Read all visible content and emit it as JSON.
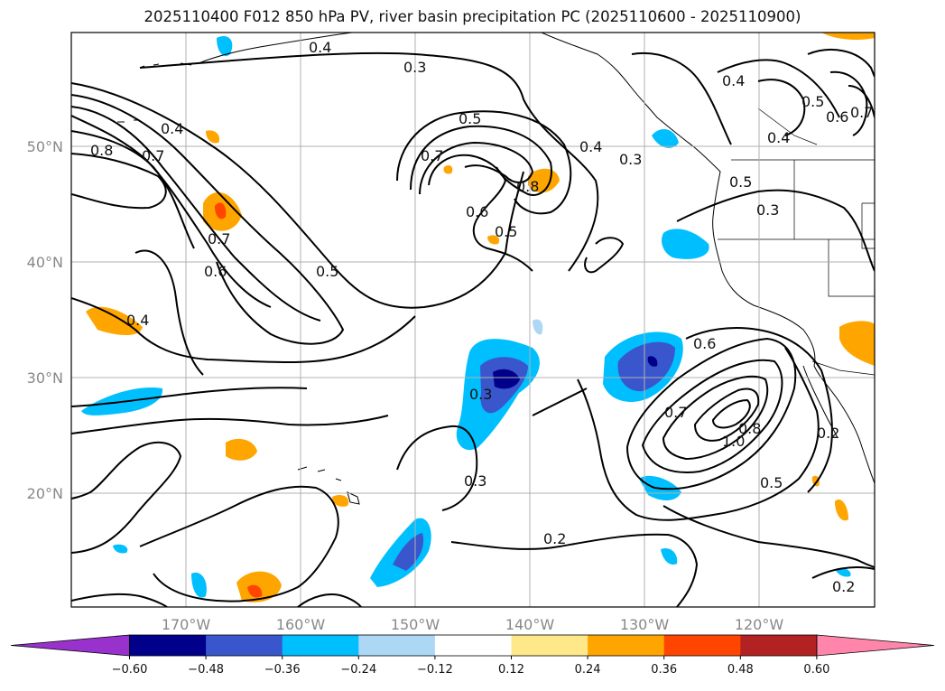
{
  "title": "2025110400 F012 850 hPa PV, river basin precipitation PC (2025110600 - 2025110900)",
  "map": {
    "lon_labels": [
      "170°W",
      "160°W",
      "150°W",
      "140°W",
      "130°W",
      "120°W"
    ],
    "lat_labels": [
      "50°N",
      "40°N",
      "30°N",
      "20°N"
    ],
    "contour_labels": [
      {
        "text": "0.3"
      },
      {
        "text": "0.4"
      },
      {
        "text": "0.8"
      },
      {
        "text": "0.7"
      },
      {
        "text": "0.4"
      },
      {
        "text": "0.5"
      },
      {
        "text": "0.7"
      },
      {
        "text": "0.6"
      },
      {
        "text": "0.8"
      },
      {
        "text": "0.5"
      },
      {
        "text": "0.4"
      },
      {
        "text": "0.3"
      },
      {
        "text": "0.4"
      },
      {
        "text": "0.5"
      },
      {
        "text": "0.6"
      },
      {
        "text": "0.7"
      },
      {
        "text": "0.4"
      },
      {
        "text": "0.5"
      },
      {
        "text": "0.3"
      },
      {
        "text": "0.7"
      },
      {
        "text": "0.6"
      },
      {
        "text": "0.5"
      },
      {
        "text": "0.4"
      },
      {
        "text": "0.3"
      },
      {
        "text": "0.3"
      },
      {
        "text": "0.6"
      },
      {
        "text": "0.7"
      },
      {
        "text": "1.0"
      },
      {
        "text": "0.8"
      },
      {
        "text": "0.5"
      },
      {
        "text": "0.2"
      },
      {
        "text": "0.2"
      },
      {
        "text": "0.2"
      }
    ]
  },
  "colorbar": {
    "ticks": [
      "−0.60",
      "−0.48",
      "−0.36",
      "−0.24",
      "−0.12",
      "0.12",
      "0.24",
      "0.36",
      "0.48",
      "0.60"
    ],
    "colors": [
      "#9932cc",
      "#00008b",
      "#3a56cc",
      "#00bfff",
      "#add8f5",
      "#ffffff",
      "#ffe88a",
      "#ffa500",
      "#ff4500",
      "#b22222",
      "#ff86aa"
    ]
  }
}
